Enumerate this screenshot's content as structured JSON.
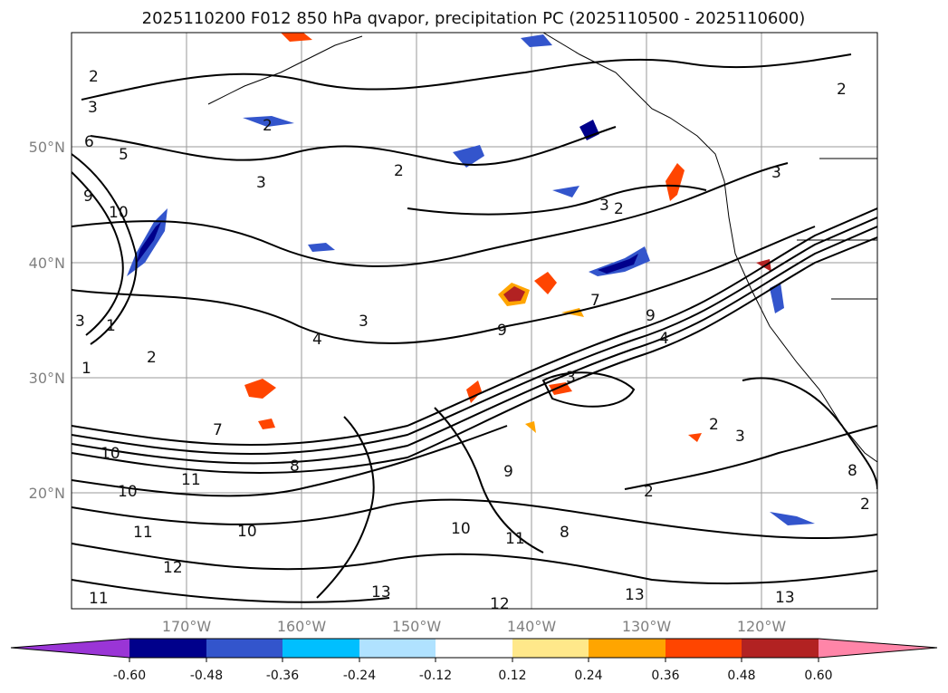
{
  "title": "2025110200 F012 850 hPa qvapor, precipitation PC (2025110500 - 2025110600)",
  "lat_labels": [
    "50°N",
    "40°N",
    "30°N",
    "20°N"
  ],
  "lon_labels": [
    "170°W",
    "160°W",
    "150°W",
    "140°W",
    "130°W",
    "120°W"
  ],
  "colorbar": {
    "ticks": [
      "-0.60",
      "-0.48",
      "-0.36",
      "-0.24",
      "-0.12",
      "0.12",
      "0.24",
      "0.36",
      "0.48",
      "0.60"
    ],
    "colors": [
      "#9a35d6",
      "#00008b",
      "#3355cc",
      "#00bfff",
      "#b0e2ff",
      "#ffffff",
      "#ffe88a",
      "#ffa500",
      "#ff4500",
      "#b22222",
      "#ff85a8"
    ]
  },
  "contour_labels": [
    "2",
    "3",
    "2",
    "2",
    "3",
    "4",
    "5",
    "6",
    "9",
    "10",
    "1",
    "2",
    "3",
    "7",
    "9",
    "3",
    "2",
    "3",
    "3",
    "4",
    "7",
    "2",
    "10",
    "11",
    "10",
    "11",
    "10",
    "12",
    "11",
    "13",
    "13",
    "13",
    "12",
    "10",
    "11",
    "8",
    "9",
    "3",
    "2",
    "3",
    "2",
    "8",
    "9",
    "1",
    "8",
    "2"
  ],
  "precip_colors": {
    "negative_dark": "#00008b",
    "negative_mid": "#3355cc",
    "negative_light": "#00bfff",
    "positive_light": "#ffe88a",
    "positive_mid": "#ffa500",
    "positive_strong": "#ff4500",
    "positive_dark": "#b22222"
  }
}
